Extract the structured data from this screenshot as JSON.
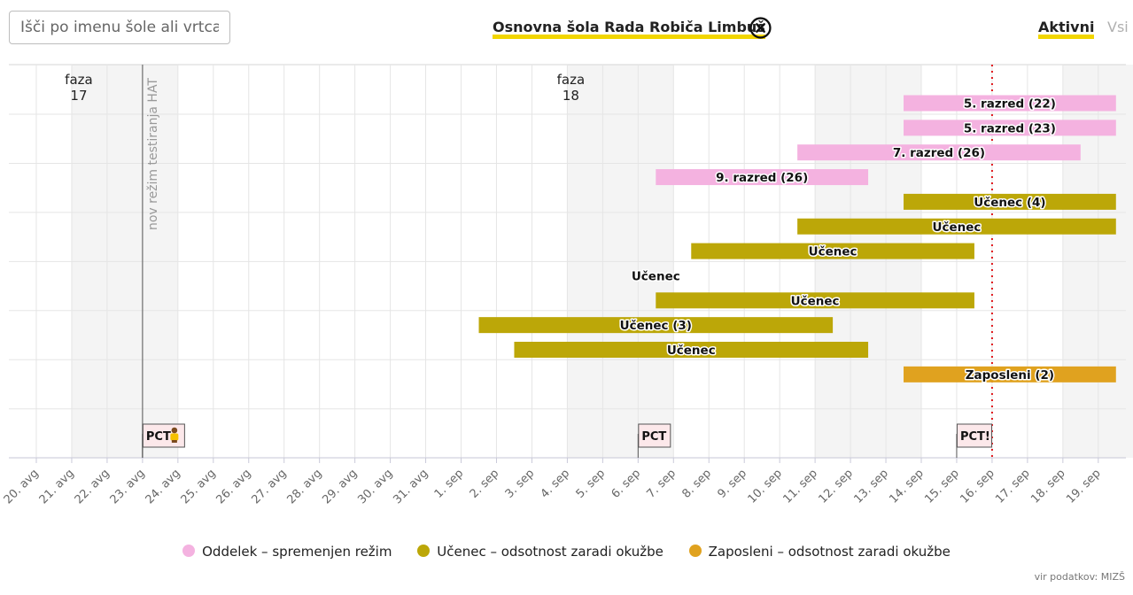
{
  "search": {
    "placeholder": "Išči po imenu šole ali vrtca"
  },
  "header": {
    "school_name": "Osnovna šola Rada Robiča Limbuš",
    "tabs": [
      {
        "label": "Aktivni"
      },
      {
        "label": "Vsi"
      }
    ]
  },
  "colors": {
    "pink": "#f4b2e0",
    "olive": "#bca708",
    "gold": "#e0a21f",
    "accent": "#f2d600",
    "today": "#e0161b"
  },
  "chart_data": {
    "type": "gantt",
    "x_ticks": [
      "20. avg",
      "21. avg",
      "22. avg",
      "23. avg",
      "24. avg",
      "25. avg",
      "26. avg",
      "27. avg",
      "28. avg",
      "29. avg",
      "30. avg",
      "31. avg",
      "1. sep",
      "2. sep",
      "3. sep",
      "4. sep",
      "5. sep",
      "6. sep",
      "7. sep",
      "8. sep",
      "9. sep",
      "10. sep",
      "11. sep",
      "12. sep",
      "13. sep",
      "14. sep",
      "15. sep",
      "16. sep",
      "17. sep",
      "18. sep",
      "19. sep"
    ],
    "today_index": 27,
    "phases": [
      {
        "label": "faza",
        "number": "17",
        "day_index": 1.1
      },
      {
        "label": "faza",
        "number": "18",
        "day_index": 15
      }
    ],
    "shaded_days": [
      1,
      2,
      3,
      15,
      16,
      17,
      22,
      23,
      24,
      29,
      30
    ],
    "milestone": {
      "label": "nov režim testiranja HAT",
      "day_index": 3
    },
    "bars": [
      {
        "row": 0,
        "label": "5. razred (22)",
        "start": 24.5,
        "end": 30.5,
        "category": "pink"
      },
      {
        "row": 1,
        "label": "5. razred (23)",
        "start": 24.5,
        "end": 30.5,
        "category": "pink"
      },
      {
        "row": 2,
        "label": "7. razred (26)",
        "start": 21.5,
        "end": 29.5,
        "category": "pink"
      },
      {
        "row": 3,
        "label": "9. razred (26)",
        "start": 17.5,
        "end": 23.5,
        "category": "pink"
      },
      {
        "row": 4,
        "label": "Učenec (4)",
        "start": 24.5,
        "end": 30.5,
        "category": "olive"
      },
      {
        "row": 5,
        "label": "Učenec",
        "start": 21.5,
        "end": 30.5,
        "category": "olive"
      },
      {
        "row": 6,
        "label": "Učenec",
        "start": 18.5,
        "end": 26.5,
        "category": "olive"
      },
      {
        "row": 7,
        "label": "Učenec",
        "start": 17.5,
        "end": 17.5,
        "category": "olive"
      },
      {
        "row": 8,
        "label": "Učenec",
        "start": 17.5,
        "end": 26.5,
        "category": "olive"
      },
      {
        "row": 9,
        "label": "Učenec (3)",
        "start": 12.5,
        "end": 22.5,
        "category": "olive"
      },
      {
        "row": 10,
        "label": "Učenec",
        "start": 13.5,
        "end": 23.5,
        "category": "olive"
      },
      {
        "row": 11,
        "label": "Zaposleni (2)",
        "start": 24.5,
        "end": 30.5,
        "category": "gold"
      }
    ],
    "markers": [
      {
        "label": "PCT",
        "day_index": 3,
        "icon": "person-icon"
      },
      {
        "label": "PCT",
        "day_index": 17
      },
      {
        "label": "PCT!",
        "day_index": 26
      }
    ],
    "legend": [
      {
        "label": "Oddelek – spremenjen režim",
        "category": "pink"
      },
      {
        "label": "Učenec – odsotnost zaradi okužbe",
        "category": "olive"
      },
      {
        "label": "Zaposleni – odsotnost zaradi okužbe",
        "category": "gold"
      }
    ]
  },
  "footer": {
    "source": "vir podatkov: MIZŠ"
  }
}
